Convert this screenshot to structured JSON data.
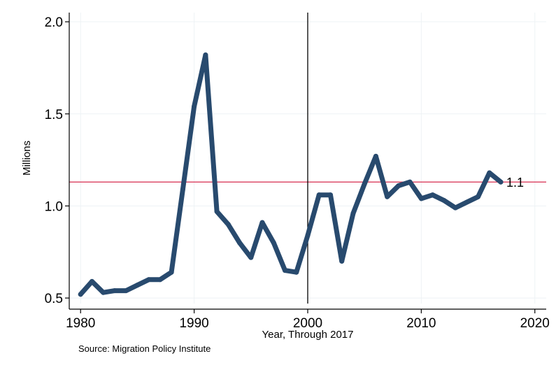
{
  "chart_data": {
    "type": "line",
    "xlabel": "Year, Through 2017",
    "ylabel": "Millions",
    "xlim": [
      1979,
      2021
    ],
    "ylim": [
      0.47,
      2.05
    ],
    "xticks": [
      1980,
      1990,
      2000,
      2010,
      2020
    ],
    "yticks": [
      0.5,
      1.0,
      1.5,
      2.0
    ],
    "ytick_labels": [
      "0.5",
      "1.0",
      "1.5",
      "2.0"
    ],
    "grid": {
      "horizontal": true,
      "vertical": true,
      "color": "#eef2f5"
    },
    "line_color": "#284a6e",
    "series": [
      {
        "x": [
          1980,
          1981,
          1982,
          1983,
          1984,
          1985,
          1986,
          1987,
          1988,
          1989,
          1990,
          1991,
          1992,
          1993,
          1994,
          1995,
          1996,
          1997,
          1998,
          1999,
          2000,
          2001,
          2002,
          2003,
          2004,
          2005,
          2006,
          2007,
          2008,
          2009,
          2010,
          2011,
          2012,
          2013,
          2014,
          2015,
          2016,
          2017
        ],
        "values": [
          0.52,
          0.59,
          0.53,
          0.54,
          0.54,
          0.57,
          0.6,
          0.6,
          0.64,
          1.09,
          1.54,
          1.82,
          0.97,
          0.9,
          0.8,
          0.72,
          0.91,
          0.8,
          0.65,
          0.64,
          0.84,
          1.06,
          1.06,
          0.7,
          0.96,
          1.12,
          1.27,
          1.05,
          1.11,
          1.13,
          1.04,
          1.06,
          1.03,
          0.99,
          1.02,
          1.05,
          1.18,
          1.13
        ]
      }
    ],
    "reference_lines": {
      "horizontal": {
        "value": 1.13,
        "color": "#d62b4e"
      },
      "vertical": {
        "value": 2000,
        "color": "#000000"
      }
    },
    "end_label": "1.1",
    "source_note": "Source: Migration Policy Institute"
  }
}
